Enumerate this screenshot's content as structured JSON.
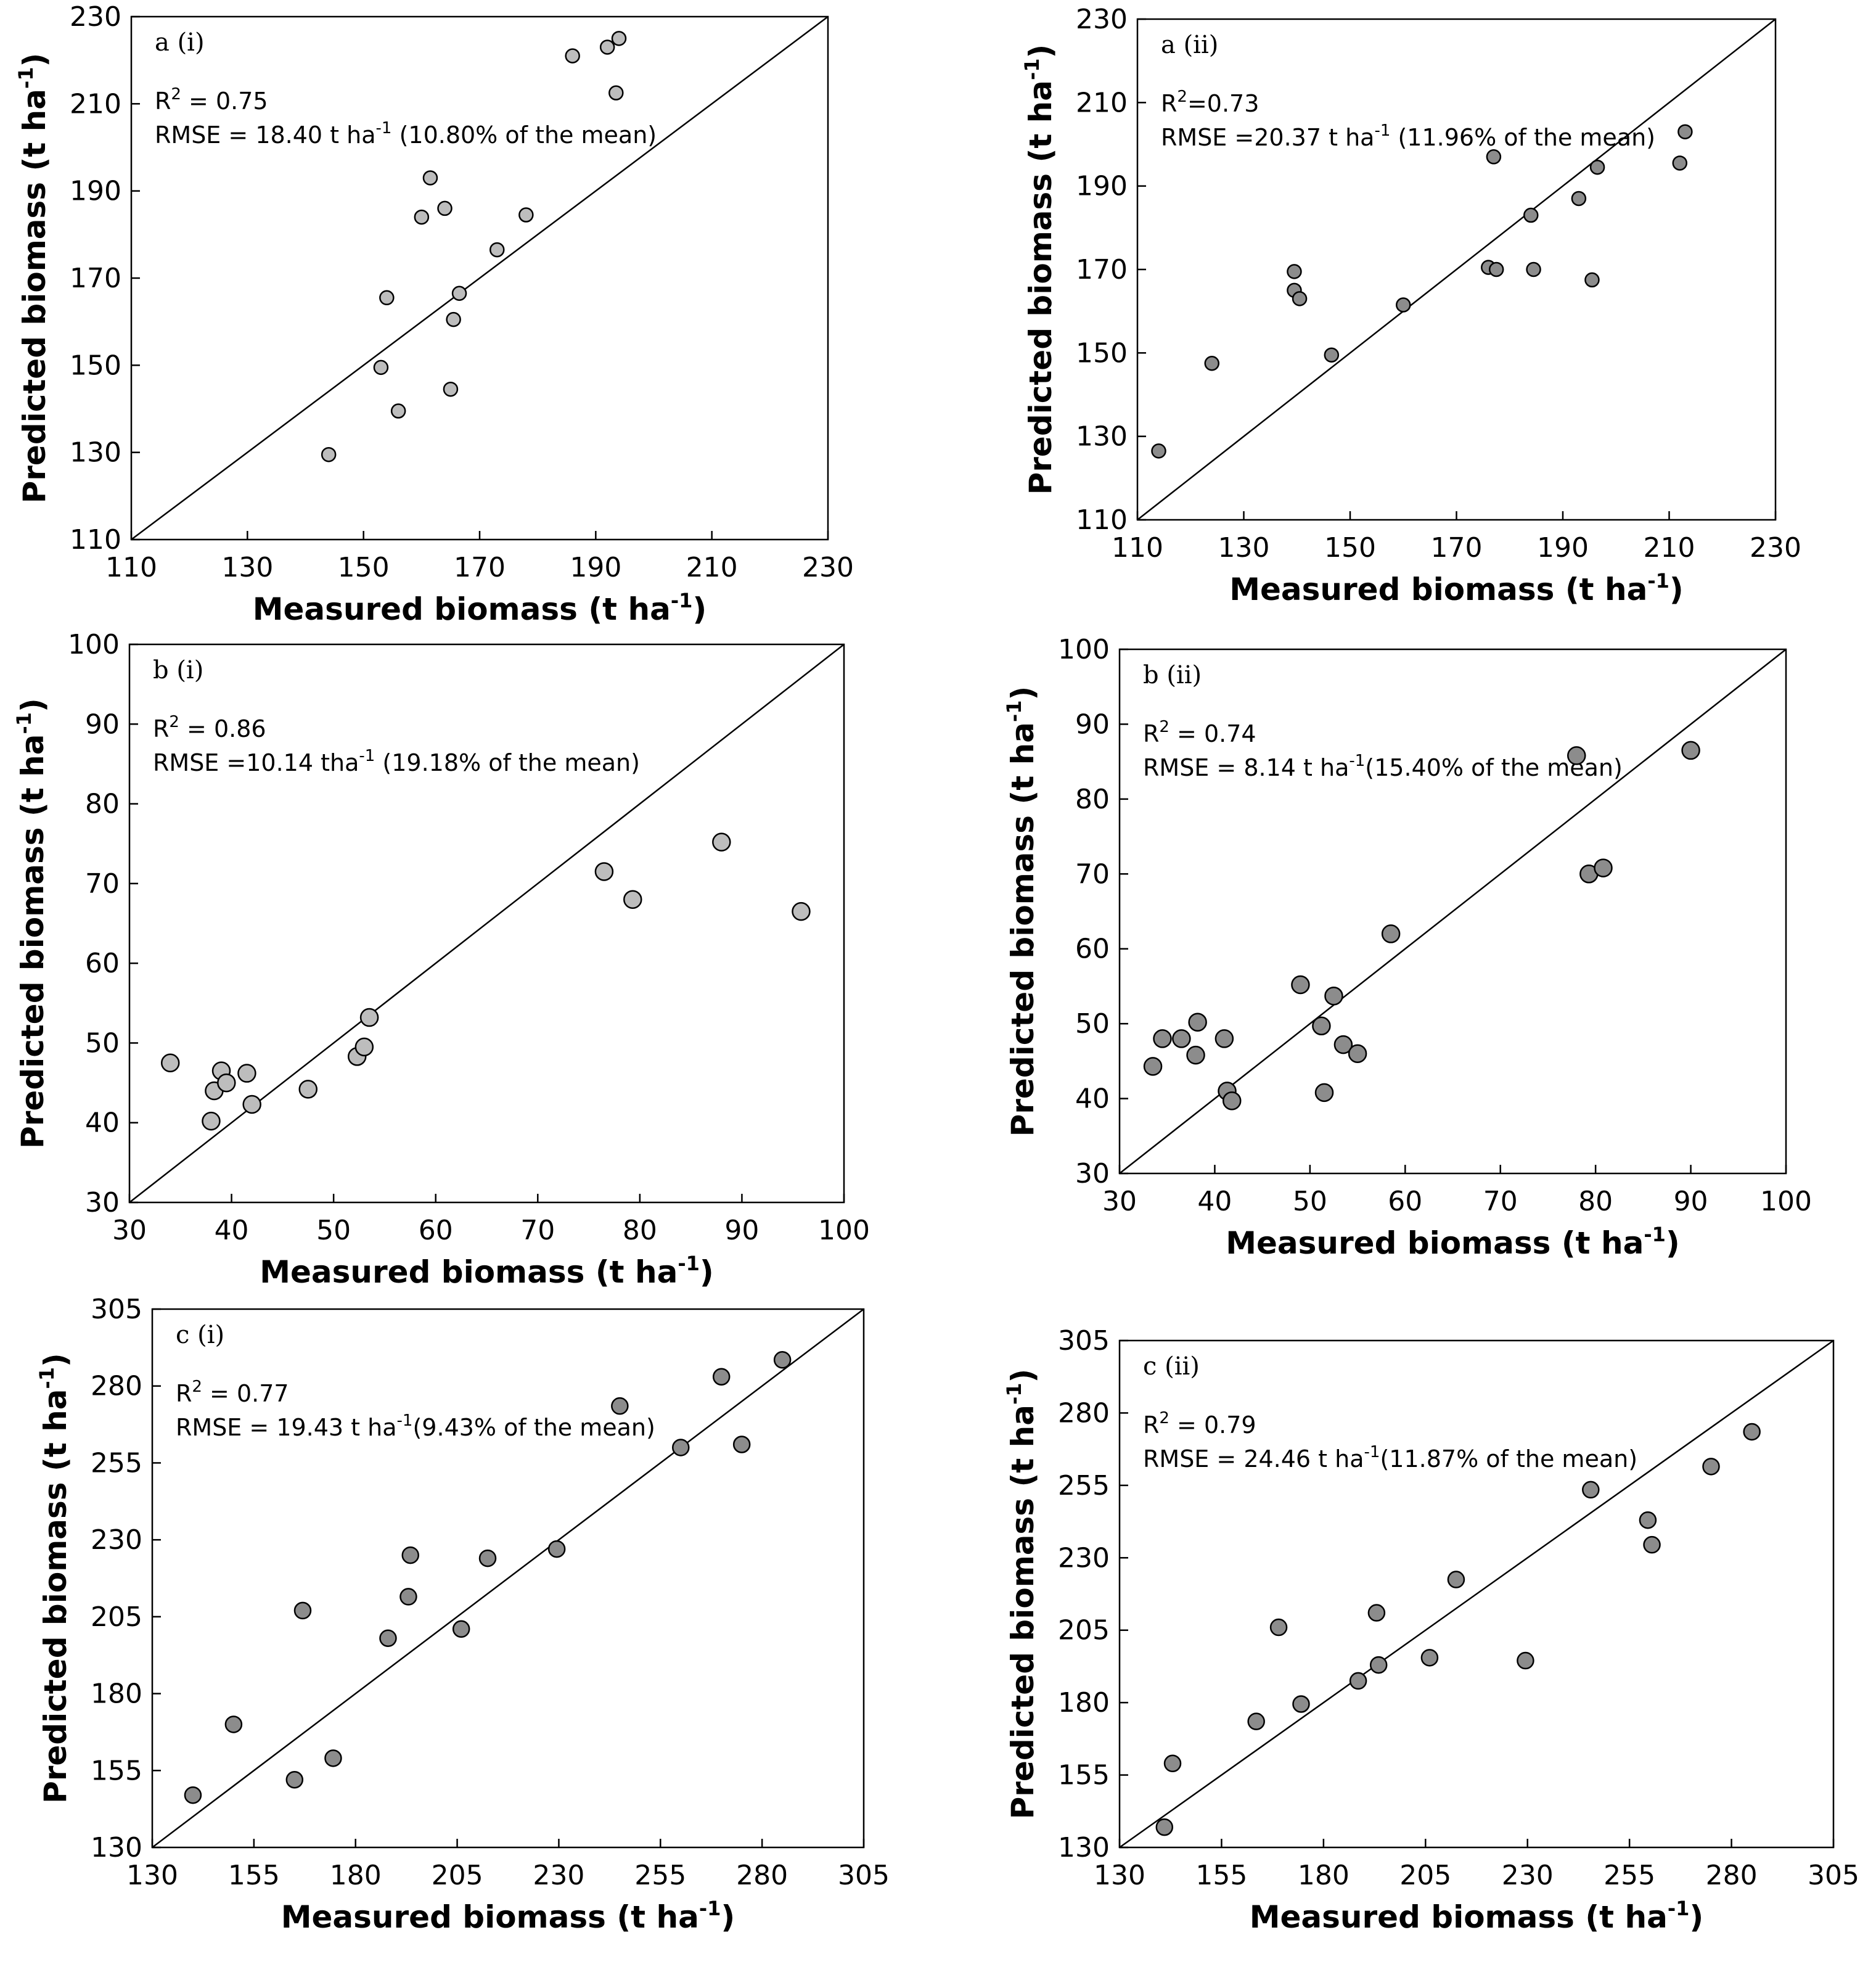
{
  "chart_data": [
    {
      "type": "scatter",
      "panel_label": "a (i)",
      "stats": {
        "r2_label": "R",
        "r2_exp": "2",
        "r2_value": " = 0.75",
        "rmse_prefix": "RMSE = 18.40 t ha",
        "rmse_exp": "-1",
        "rmse_suffix": " (10.80% of the mean)"
      },
      "xlabel": "Measured biomass (t ha",
      "ylabel": "Predicted biomass (t ha",
      "unit_exp": "-1",
      "label_close": ")",
      "xlim": [
        110,
        230
      ],
      "ylim": [
        110,
        230
      ],
      "xticks": [
        "110",
        "130",
        "150",
        "170",
        "190",
        "210",
        "230"
      ],
      "yticks": [
        "110",
        "130",
        "150",
        "170",
        "190",
        "210",
        "230"
      ],
      "one_to_one_line": true,
      "marker_color": "#bdbdbd",
      "x": [
        144,
        153,
        154,
        156,
        160,
        161.5,
        164,
        165,
        165.5,
        166.5,
        173,
        178,
        186,
        192,
        193.5,
        194
      ],
      "y": [
        129.5,
        149.5,
        165.5,
        139.5,
        184,
        193,
        186,
        144.5,
        160.5,
        166.5,
        176.5,
        184.5,
        221,
        223,
        212.5,
        225
      ]
    },
    {
      "type": "scatter",
      "panel_label": "a (ii)",
      "stats": {
        "r2_label": "R",
        "r2_exp": "2",
        "r2_value": "=0.73",
        "rmse_prefix": "RMSE =20.37 t ha",
        "rmse_exp": "-1",
        "rmse_suffix": " (11.96% of the mean)"
      },
      "xlabel": "Measured biomass (t ha",
      "ylabel": "Predicted biomass (t ha",
      "unit_exp": "-1",
      "label_close": ")",
      "xlim": [
        110,
        230
      ],
      "ylim": [
        110,
        230
      ],
      "xticks": [
        "110",
        "130",
        "150",
        "170",
        "190",
        "210",
        "230"
      ],
      "yticks": [
        "110",
        "130",
        "150",
        "170",
        "190",
        "210",
        "230"
      ],
      "one_to_one_line": true,
      "marker_color": "#8c8c8c",
      "x": [
        114,
        124,
        139.5,
        139.5,
        140.5,
        146.5,
        160,
        176,
        177,
        177.5,
        184,
        184.5,
        193,
        195.5,
        196.5,
        212,
        213
      ],
      "y": [
        126.5,
        147.5,
        165,
        169.5,
        163,
        149.5,
        161.5,
        170.5,
        197,
        170,
        183,
        170,
        187,
        167.5,
        194.5,
        195.5,
        203
      ]
    },
    {
      "type": "scatter",
      "panel_label": "b (i)",
      "stats": {
        "r2_label": "R",
        "r2_exp": "2",
        "r2_value": " = 0.86",
        "rmse_prefix": "RMSE =10.14 tha",
        "rmse_exp": "-1",
        "rmse_suffix": " (19.18% of the mean)"
      },
      "xlabel": "Measured biomass (t ha",
      "ylabel": "Predicted biomass (t ha",
      "unit_exp": "-1",
      "label_close": ")",
      "xlim": [
        30,
        100
      ],
      "ylim": [
        30,
        100
      ],
      "xticks": [
        "30",
        "40",
        "50",
        "60",
        "70",
        "80",
        "90",
        "100"
      ],
      "yticks": [
        "30",
        "40",
        "50",
        "60",
        "70",
        "80",
        "90",
        "100"
      ],
      "one_to_one_line": true,
      "marker_color": "#bdbdbd",
      "x": [
        34,
        38,
        38.3,
        39,
        39.5,
        41.5,
        42,
        47.5,
        52.3,
        53,
        53.5,
        76.5,
        79.3,
        88,
        95.8
      ],
      "y": [
        47.5,
        40.2,
        44,
        46.5,
        45,
        46.2,
        42.3,
        44.2,
        48.3,
        49.5,
        53.2,
        71.5,
        68,
        75.2,
        66.5
      ]
    },
    {
      "type": "scatter",
      "panel_label": "b (ii)",
      "stats": {
        "r2_label": "R",
        "r2_exp": "2",
        "r2_value": " = 0.74",
        "rmse_prefix": "RMSE = 8.14 t ha",
        "rmse_exp": "-1",
        "rmse_suffix": "(15.40% of the mean)"
      },
      "xlabel": "Measured biomass (t ha",
      "ylabel": "Predicted biomass (t ha",
      "unit_exp": "-1",
      "label_close": ")",
      "xlim": [
        30,
        100
      ],
      "ylim": [
        30,
        100
      ],
      "xticks": [
        "30",
        "40",
        "50",
        "60",
        "70",
        "80",
        "90",
        "100"
      ],
      "yticks": [
        "30",
        "40",
        "50",
        "60",
        "70",
        "80",
        "90",
        "100"
      ],
      "one_to_one_line": true,
      "marker_color": "#8c8c8c",
      "x": [
        33.5,
        34.5,
        36.5,
        38,
        38.2,
        41,
        41.3,
        41.8,
        49,
        51.2,
        51.5,
        52.5,
        53.5,
        55,
        58.5,
        78,
        79.3,
        80.8,
        90
      ],
      "y": [
        44.3,
        48,
        48,
        45.8,
        50.2,
        48,
        41,
        39.7,
        55.2,
        49.7,
        40.8,
        53.7,
        47.2,
        46,
        62,
        85.8,
        70,
        70.8,
        86.5
      ]
    },
    {
      "type": "scatter",
      "panel_label": "c (i)",
      "stats": {
        "r2_label": "R",
        "r2_exp": "2",
        "r2_value": " = 0.77",
        "rmse_prefix": "RMSE = 19.43 t ha",
        "rmse_exp": "-1",
        "rmse_suffix": "(9.43% of the mean)"
      },
      "xlabel": "Measured biomass (t ha",
      "ylabel": "Predicted biomass (t ha",
      "unit_exp": "-1",
      "label_close": ")",
      "xlim": [
        130,
        305
      ],
      "ylim": [
        130,
        305
      ],
      "xticks": [
        "130",
        "155",
        "180",
        "205",
        "230",
        "255",
        "280",
        "305"
      ],
      "yticks": [
        "130",
        "155",
        "180",
        "205",
        "230",
        "255",
        "280",
        "305"
      ],
      "one_to_one_line": true,
      "marker_color": "#8c8c8c",
      "x": [
        140,
        150,
        165,
        167,
        174.5,
        188,
        193,
        193.5,
        206,
        212.5,
        229.5,
        245,
        260,
        270,
        275,
        285
      ],
      "y": [
        147,
        170,
        152,
        207,
        159,
        198,
        211.5,
        225,
        201,
        224,
        227,
        273.5,
        260,
        283,
        261,
        288.5
      ]
    },
    {
      "type": "scatter",
      "panel_label": "c (ii)",
      "stats": {
        "r2_label": "R",
        "r2_exp": "2",
        "r2_value": " = 0.79",
        "rmse_prefix": "RMSE = 24.46 t ha",
        "rmse_exp": "-1",
        "rmse_suffix": "(11.87% of the mean)"
      },
      "xlabel": "Measured biomass (t ha",
      "ylabel": "Predicted biomass (t ha",
      "unit_exp": "-1",
      "label_close": ")",
      "xlim": [
        130,
        305
      ],
      "ylim": [
        130,
        305
      ],
      "xticks": [
        "130",
        "155",
        "180",
        "205",
        "230",
        "255",
        "280",
        "305"
      ],
      "yticks": [
        "130",
        "155",
        "180",
        "205",
        "230",
        "255",
        "280",
        "305"
      ],
      "one_to_one_line": true,
      "marker_color": "#8c8c8c",
      "x": [
        141,
        143,
        163.5,
        169,
        174.5,
        188.5,
        193,
        193.5,
        206,
        212.5,
        229.5,
        245.5,
        259.5,
        260.5,
        275,
        285
      ],
      "y": [
        137,
        159,
        173.5,
        206,
        179.5,
        187.5,
        211,
        193,
        195.5,
        222.5,
        194.5,
        253.5,
        243,
        234.5,
        261.5,
        273.5
      ]
    }
  ]
}
